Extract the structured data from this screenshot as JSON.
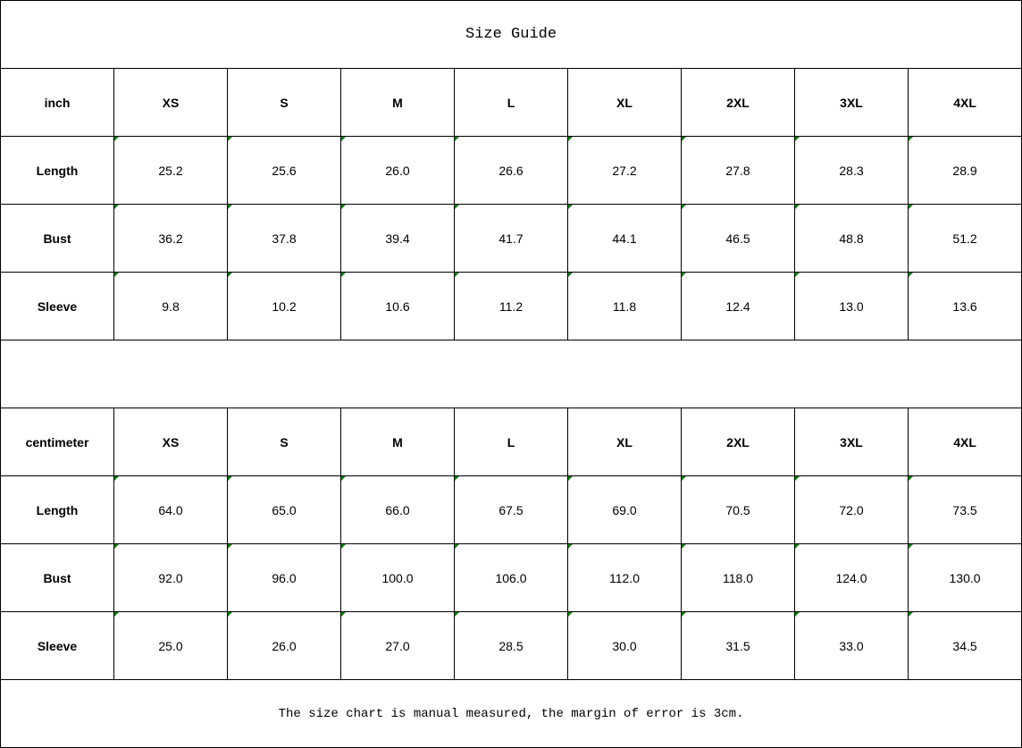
{
  "title": "Size Guide",
  "sizes": [
    "XS",
    "S",
    "M",
    "L",
    "XL",
    "2XL",
    "3XL",
    "4XL"
  ],
  "tables": [
    {
      "unit": "inch",
      "rows": [
        {
          "label": "Length",
          "values": [
            "25.2",
            "25.6",
            "26.0",
            "26.6",
            "27.2",
            "27.8",
            "28.3",
            "28.9"
          ]
        },
        {
          "label": "Bust",
          "values": [
            "36.2",
            "37.8",
            "39.4",
            "41.7",
            "44.1",
            "46.5",
            "48.8",
            "51.2"
          ]
        },
        {
          "label": "Sleeve",
          "values": [
            "9.8",
            "10.2",
            "10.6",
            "11.2",
            "11.8",
            "12.4",
            "13.0",
            "13.6"
          ]
        }
      ]
    },
    {
      "unit": "centimeter",
      "rows": [
        {
          "label": "Length",
          "values": [
            "64.0",
            "65.0",
            "66.0",
            "67.5",
            "69.0",
            "70.5",
            "72.0",
            "73.5"
          ]
        },
        {
          "label": "Bust",
          "values": [
            "92.0",
            "96.0",
            "100.0",
            "106.0",
            "112.0",
            "118.0",
            "124.0",
            "130.0"
          ]
        },
        {
          "label": "Sleeve",
          "values": [
            "25.0",
            "26.0",
            "27.0",
            "28.5",
            "30.0",
            "31.5",
            "33.0",
            "34.5"
          ]
        }
      ]
    }
  ],
  "note": "The size chart is manual measured, the margin of error is 3cm.",
  "colors": {
    "cell_marker": "#0a7d0a",
    "border": "#000000"
  }
}
